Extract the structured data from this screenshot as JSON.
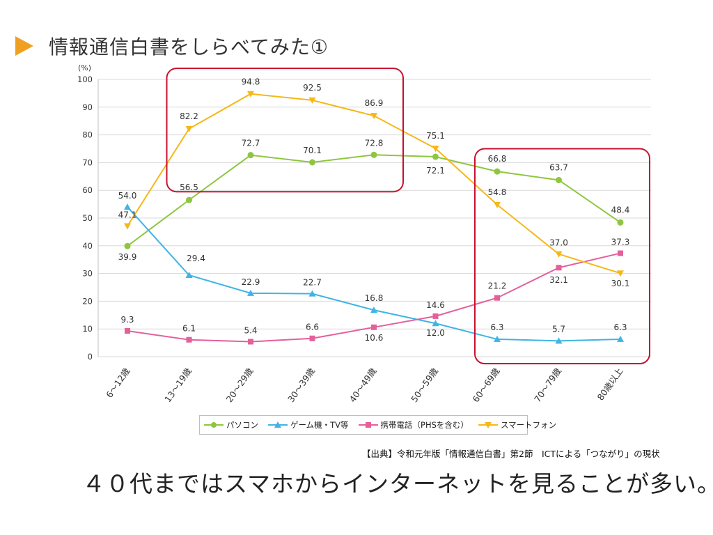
{
  "slide": {
    "title": "情報通信白書をしらべてみた①",
    "source": "【出典】令和元年版「情報通信白書」第2節　ICTによる「つながり」の現状",
    "caption": "４０代まではスマホからインターネットを見ることが多い。"
  },
  "colors": {
    "pc": "#8ec63f",
    "game": "#3fb4e5",
    "mobile": "#e4609a",
    "smartphone": "#f5b817",
    "highlight": "#c8102e",
    "title_arrow": "#f0a020"
  },
  "chart_data": {
    "type": "line",
    "unit_label": "(%)",
    "ylim": [
      0,
      100
    ],
    "yticks": [
      0,
      10,
      20,
      30,
      40,
      50,
      60,
      70,
      80,
      90,
      100
    ],
    "grid": true,
    "categories": [
      "6～12歳",
      "13～19歳",
      "20～29歳",
      "30～39歳",
      "40～49歳",
      "50～59歳",
      "60～69歳",
      "70～79歳",
      "80歳以上"
    ],
    "series": [
      {
        "key": "pc",
        "name": "パソコン",
        "marker": "circle",
        "values": [
          39.9,
          56.5,
          72.7,
          70.1,
          72.8,
          72.1,
          66.8,
          63.7,
          48.4
        ],
        "labels": [
          "39.9",
          "56.5",
          "72.7",
          "70.1",
          "72.8",
          "72.1",
          "66.8",
          "63.7",
          "48.4"
        ]
      },
      {
        "key": "game",
        "name": "ゲーム機・TV等",
        "marker": "triangle",
        "values": [
          54.0,
          29.4,
          22.9,
          22.7,
          16.8,
          12.0,
          6.3,
          5.7,
          6.3
        ],
        "labels": [
          "54.0",
          "29.4",
          "22.9",
          "22.7",
          "16.8",
          "12.0",
          "6.3",
          "5.7",
          "6.3"
        ]
      },
      {
        "key": "mobile",
        "name": "携帯電話（PHSを含む）",
        "marker": "square",
        "values": [
          9.3,
          6.1,
          5.4,
          6.6,
          10.6,
          14.6,
          21.2,
          32.1,
          37.3
        ],
        "labels": [
          "9.3",
          "6.1",
          "5.4",
          "6.6",
          "10.6",
          "14.6",
          "21.2",
          "32.1",
          "37.3"
        ]
      },
      {
        "key": "smartphone",
        "name": "スマートフォン",
        "marker": "triangle-down",
        "values": [
          47.1,
          82.2,
          94.8,
          92.5,
          86.9,
          75.1,
          54.8,
          37.0,
          30.1
        ],
        "labels": [
          "47.1",
          "82.2",
          "94.8",
          "92.5",
          "86.9",
          "75.1",
          "54.8",
          "37.0",
          "30.1"
        ]
      }
    ],
    "highlights": [
      {
        "name": "13～49歳",
        "from_category": 1,
        "to_category": 4,
        "y_from": 60,
        "y_to": 104
      },
      {
        "name": "60歳以上",
        "from_category": 6,
        "to_category": 8,
        "y_from": -2,
        "y_to": 75
      }
    ],
    "legend": [
      "パソコン",
      "ゲーム機・TV等",
      "携帯電話（PHSを含む）",
      "スマートフォン"
    ]
  }
}
